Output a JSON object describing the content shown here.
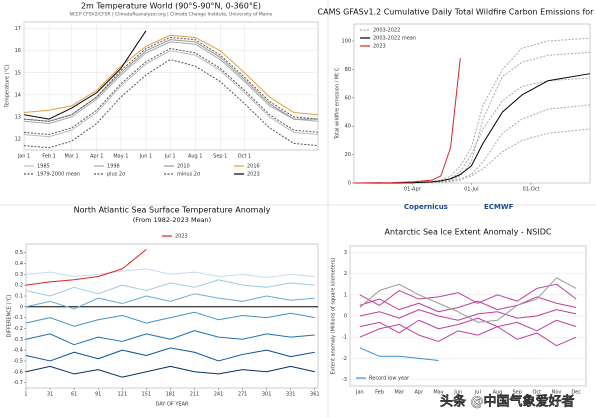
{
  "chart_data": [
    {
      "type": "line",
      "title": "2m Temperature World (90°S-90°N, 0-360°E)",
      "subtitle": "NCEP CFSV2/CFSR | ClimateReanalyzer.org | Climate Change Institute, University of Maine",
      "ylabel": "Temperature (°C)",
      "legend": "below",
      "grid": true,
      "x": [
        1,
        32,
        60,
        91,
        121,
        152,
        182,
        213,
        244,
        274,
        305,
        335,
        365
      ],
      "xlim": [
        1,
        365
      ],
      "xticks": [
        {
          "value": 1,
          "label": "Jan 1"
        },
        {
          "value": 32,
          "label": "Feb 1"
        },
        {
          "value": 60,
          "label": "Mar 1"
        },
        {
          "value": 91,
          "label": "Apr 1"
        },
        {
          "value": 121,
          "label": "May 1"
        },
        {
          "value": 152,
          "label": "Jun 1"
        },
        {
          "value": 182,
          "label": "Jul 1"
        },
        {
          "value": 213,
          "label": "Aug 1"
        },
        {
          "value": 244,
          "label": "Sep 1"
        },
        {
          "value": 274,
          "label": "Oct 1"
        }
      ],
      "ylim": [
        11.5,
        17.3
      ],
      "yticks": [
        12,
        13,
        14,
        15,
        16,
        17
      ],
      "series": [
        {
          "name": "1985",
          "color": "#bbbbbb",
          "values": [
            12.2,
            12.1,
            12.4,
            13.2,
            14.4,
            15.4,
            16.0,
            15.8,
            15.1,
            14.1,
            13.0,
            12.3,
            12.2
          ]
        },
        {
          "name": "1998",
          "color": "#aaaaaa",
          "values": [
            12.8,
            12.7,
            13.0,
            13.8,
            14.9,
            15.9,
            16.4,
            16.3,
            15.6,
            14.6,
            13.5,
            12.9,
            12.8
          ]
        },
        {
          "name": "2010",
          "color": "#999999",
          "values": [
            12.9,
            12.8,
            13.1,
            13.9,
            15.0,
            16.0,
            16.5,
            16.4,
            15.7,
            14.7,
            13.6,
            12.9,
            12.9
          ]
        },
        {
          "name": "2016",
          "color": "#e0a040",
          "values": [
            13.2,
            13.3,
            13.5,
            14.2,
            15.3,
            16.2,
            16.7,
            16.6,
            16.0,
            15.0,
            13.9,
            13.2,
            13.1
          ]
        },
        {
          "name": "1979-2000 mean",
          "color": "#555555",
          "dash": true,
          "values": [
            12.3,
            12.2,
            12.5,
            13.3,
            14.5,
            15.5,
            16.1,
            15.9,
            15.2,
            14.2,
            13.1,
            12.4,
            12.3
          ]
        },
        {
          "name": "plus 2σ",
          "color": "#555555",
          "dash": true,
          "values": [
            12.9,
            12.8,
            13.1,
            13.9,
            15.1,
            16.1,
            16.6,
            16.5,
            15.8,
            14.8,
            13.7,
            13.0,
            12.9
          ]
        },
        {
          "name": "minus 2σ",
          "color": "#555555",
          "dash": true,
          "values": [
            11.7,
            11.6,
            11.9,
            12.7,
            13.9,
            14.9,
            15.6,
            15.3,
            14.6,
            13.6,
            12.5,
            11.8,
            11.7
          ]
        },
        {
          "name": "2023",
          "color": "#000000",
          "values": [
            13.1,
            12.9,
            13.4,
            14.1,
            15.2,
            16.9,
            null,
            null,
            null,
            null,
            null,
            null,
            null
          ]
        }
      ]
    },
    {
      "type": "line",
      "title": "CAMS GFASv1.2 Cumulative Daily Total Wildfire Carbon Emissions for Canada",
      "ylabel": "Total wildfire emission / Mt C",
      "legend": "upper left",
      "grid": false,
      "logos": [
        "Copernicus",
        "ECMWF"
      ],
      "x": [
        1,
        60,
        91,
        121,
        135,
        150,
        165,
        182,
        200,
        230,
        260,
        300,
        365
      ],
      "xlim": [
        1,
        365
      ],
      "xticks": [
        {
          "value": 91,
          "label": "01-Apr"
        },
        {
          "value": 182,
          "label": "01-Jul"
        },
        {
          "value": 274,
          "label": "01-Oct"
        }
      ],
      "ylim": [
        0,
        112
      ],
      "yticks": [
        0,
        20,
        40,
        60,
        80,
        100
      ],
      "series": [
        {
          "name": "2003-2022",
          "color": "#aaaaaa",
          "dash": true,
          "values": [
            0,
            0,
            0.2,
            0.5,
            1,
            2,
            5,
            15,
            45,
            75,
            85,
            90,
            92
          ]
        },
        {
          "color": "#aaaaaa",
          "dash": true,
          "values": [
            0,
            0,
            0.1,
            0.3,
            0.5,
            1,
            2,
            5,
            10,
            22,
            30,
            35,
            38
          ]
        },
        {
          "color": "#aaaaaa",
          "dash": true,
          "values": [
            0,
            0,
            0.3,
            1,
            2,
            5,
            12,
            25,
            55,
            80,
            95,
            100,
            102
          ]
        },
        {
          "color": "#aaaaaa",
          "dash": true,
          "values": [
            0,
            0,
            0.1,
            0.4,
            0.8,
            1.5,
            3,
            6,
            15,
            35,
            45,
            52,
            55
          ]
        },
        {
          "color": "#aaaaaa",
          "dash": true,
          "values": [
            0,
            0,
            0.2,
            0.6,
            1.5,
            3,
            8,
            20,
            38,
            58,
            68,
            72,
            74
          ]
        },
        {
          "name": "2003-2022 mean",
          "color": "#000000",
          "values": [
            0,
            0,
            0.2,
            0.8,
            1.5,
            3,
            6,
            12,
            28,
            50,
            62,
            72,
            77
          ]
        },
        {
          "name": "2023",
          "color": "#d62728",
          "values": [
            0,
            0.3,
            0.8,
            2,
            5,
            25,
            88,
            null,
            null,
            null,
            null,
            null,
            null
          ]
        }
      ]
    },
    {
      "type": "line",
      "title": "North Atlantic Sea Surface Temperature Anomaly",
      "subtitle": "(From 1982-2023 Mean)",
      "ylabel": "DIFFERENCE (°C)",
      "xlabel": "DAY OF YEAR",
      "legend": "above",
      "grid": false,
      "reference_line": 0,
      "x": [
        1,
        31,
        61,
        91,
        121,
        151,
        181,
        211,
        241,
        271,
        301,
        331,
        361
      ],
      "xlim": [
        1,
        365
      ],
      "xticks": [
        1,
        31,
        61,
        91,
        121,
        151,
        181,
        211,
        241,
        271,
        301,
        331,
        361
      ],
      "ylim": [
        -0.75,
        0.58
      ],
      "yticks": [
        0.5,
        0.4,
        0.3,
        0.2,
        0.1,
        0,
        -0.1,
        -0.2,
        -0.3,
        -0.4,
        -0.5,
        -0.6,
        -0.7
      ],
      "series": [
        {
          "color": "#c6dbef",
          "values": [
            0.3,
            0.32,
            0.28,
            0.3,
            0.33,
            0.35,
            0.3,
            0.32,
            0.28,
            0.3,
            0.27,
            0.3,
            0.28
          ]
        },
        {
          "color": "#9ecae1",
          "values": [
            0.15,
            0.1,
            0.18,
            0.12,
            0.2,
            0.15,
            0.22,
            0.18,
            0.25,
            0.2,
            0.18,
            0.22,
            0.2
          ]
        },
        {
          "color": "#6baed6",
          "values": [
            0.0,
            0.05,
            -0.02,
            0.08,
            0.03,
            0.1,
            0.05,
            0.12,
            0.08,
            0.05,
            0.1,
            0.06,
            0.08
          ]
        },
        {
          "color": "#4292c6",
          "values": [
            -0.15,
            -0.1,
            -0.18,
            -0.12,
            -0.08,
            -0.15,
            -0.1,
            -0.05,
            -0.12,
            -0.08,
            -0.1,
            -0.06,
            -0.1
          ]
        },
        {
          "color": "#2171b5",
          "values": [
            -0.3,
            -0.25,
            -0.35,
            -0.28,
            -0.32,
            -0.25,
            -0.3,
            -0.22,
            -0.28,
            -0.3,
            -0.25,
            -0.28,
            -0.26
          ]
        },
        {
          "color": "#08519c",
          "values": [
            -0.45,
            -0.5,
            -0.42,
            -0.48,
            -0.4,
            -0.45,
            -0.38,
            -0.42,
            -0.5,
            -0.44,
            -0.4,
            -0.46,
            -0.42
          ]
        },
        {
          "color": "#08306b",
          "values": [
            -0.6,
            -0.55,
            -0.62,
            -0.58,
            -0.65,
            -0.6,
            -0.55,
            -0.6,
            -0.62,
            -0.58,
            -0.6,
            -0.55,
            -0.6
          ]
        },
        {
          "name": "2023",
          "color": "#d62728",
          "values": [
            0.2,
            0.23,
            0.25,
            0.28,
            0.35,
            0.53,
            null,
            null,
            null,
            null,
            null,
            null,
            null
          ]
        }
      ]
    },
    {
      "type": "line",
      "title": "Antarctic Sea Ice Extent Anomaly - NSIDC",
      "ylabel": "Extent anomaly (Millions of square kilometers)",
      "legend": "lower left",
      "grid": true,
      "categories": [
        "Jan",
        "Feb",
        "Mar",
        "Apr",
        "May",
        "Jun",
        "Jul",
        "Aug",
        "Sep",
        "Oct",
        "Nov",
        "Dec"
      ],
      "ylim": [
        -3.3,
        3.3
      ],
      "yticks": [
        3,
        2,
        1,
        0,
        -1,
        -2,
        -3
      ],
      "series": [
        {
          "color": "#c0409a",
          "values": [
            0.5,
            0.8,
            0.3,
            0.6,
            0.2,
            0.4,
            0.7,
            0.3,
            0.5,
            0.9,
            0.6,
            0.4
          ]
        },
        {
          "color": "#c0409a",
          "values": [
            -0.5,
            -0.3,
            -0.8,
            -0.2,
            -0.6,
            -0.4,
            -0.1,
            -0.5,
            -0.3,
            -0.7,
            -0.2,
            -0.5
          ]
        },
        {
          "color": "#c0409a",
          "values": [
            1.0,
            0.5,
            1.2,
            0.8,
            0.9,
            1.1,
            0.6,
            1.0,
            0.7,
            1.3,
            1.5,
            0.8
          ]
        },
        {
          "color": "#c0409a",
          "values": [
            -1.0,
            -0.6,
            -0.4,
            -0.9,
            -1.2,
            -0.7,
            -0.9,
            -0.5,
            -1.1,
            -0.8,
            -1.4,
            -1.0
          ]
        },
        {
          "color": "#c0409a",
          "values": [
            0.0,
            0.2,
            -0.1,
            0.3,
            0.0,
            -0.2,
            0.1,
            0.2,
            -0.1,
            0.0,
            0.3,
            0.1
          ]
        },
        {
          "color": "#999999",
          "values": [
            0.4,
            1.2,
            1.5,
            1.0,
            0.6,
            0.2,
            -0.3,
            -0.2,
            0.5,
            0.8,
            1.8,
            1.3
          ]
        },
        {
          "name": "Record low year",
          "color": "#3a8fd0",
          "values": [
            -1.5,
            -1.9,
            -1.9,
            -2.0,
            -2.1,
            null,
            null,
            null,
            null,
            null,
            null,
            null
          ]
        }
      ]
    }
  ],
  "watermark": "头条 @中国气象爱好者"
}
